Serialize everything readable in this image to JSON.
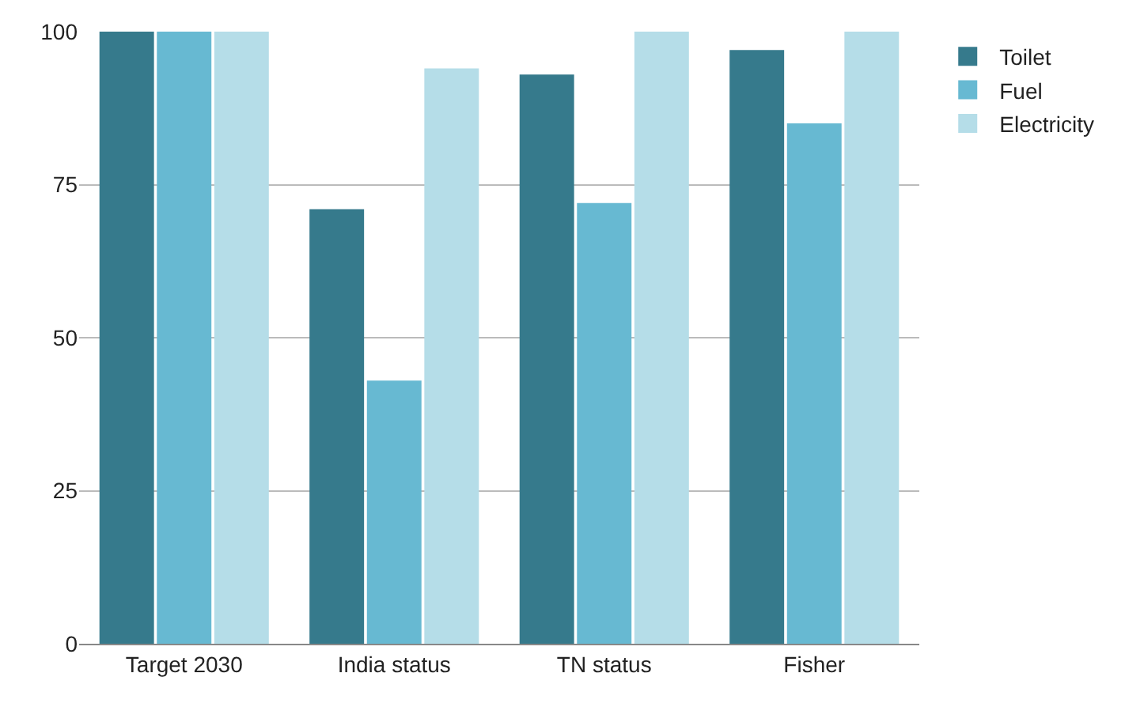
{
  "chart_data": {
    "type": "bar",
    "categories": [
      "Target 2030",
      "India status",
      "TN status",
      "Fisher"
    ],
    "series": [
      {
        "name": "Toilet",
        "color": "#367a8c",
        "values": [
          100,
          71,
          93,
          97
        ]
      },
      {
        "name": "Fuel",
        "color": "#67b9d2",
        "values": [
          100,
          43,
          72,
          85
        ]
      },
      {
        "name": "Electricity",
        "color": "#b5dde8",
        "values": [
          100,
          94,
          100,
          100
        ]
      }
    ],
    "ylim": [
      0,
      100
    ],
    "yticks": [
      0,
      25,
      50,
      75,
      100
    ],
    "grid": "y",
    "legend": "top right"
  }
}
